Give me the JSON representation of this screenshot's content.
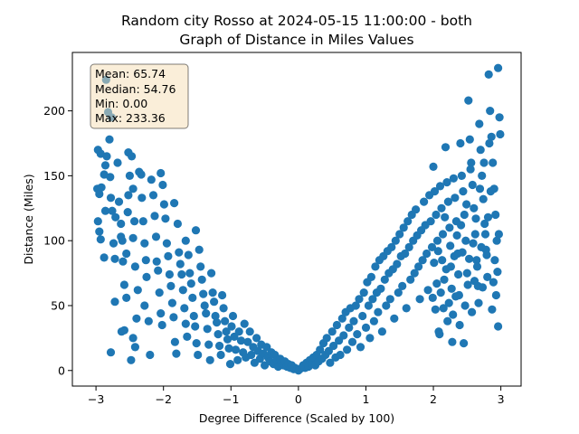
{
  "chart_data": {
    "type": "scatter",
    "title_line1": "Random city Rosso at 2024-05-15 11:00:00  - both",
    "title_line2": "Graph of Distance in Miles Values",
    "xlabel": "Degree Difference (Scaled by 100)",
    "ylabel": "Distance (Miles)",
    "xlim": [
      -3.35,
      3.3
    ],
    "ylim": [
      -12,
      245
    ],
    "xticks": [
      -3,
      -2,
      -1,
      0,
      1,
      2,
      3
    ],
    "yticks": [
      0,
      50,
      100,
      150,
      200
    ],
    "xtick_labels": [
      "−3",
      "−2",
      "−1",
      "0",
      "1",
      "2",
      "3"
    ],
    "ytick_labels": [
      "0",
      "50",
      "100",
      "150",
      "200"
    ],
    "stats": {
      "mean": "Mean: 65.74",
      "median": "Median: 54.76",
      "min": "Min: 0.00",
      "max": "Max: 233.36"
    },
    "marker_color": "#1f77b4",
    "stats_box_fill": "#f5deb3",
    "points": [
      [
        -2.97,
        170
      ],
      [
        -2.93,
        167
      ],
      [
        -2.98,
        140
      ],
      [
        -2.95,
        136
      ],
      [
        -2.92,
        141
      ],
      [
        -2.97,
        115
      ],
      [
        -2.95,
        107
      ],
      [
        -2.93,
        101
      ],
      [
        -2.88,
        87
      ],
      [
        -2.86,
        123
      ],
      [
        -2.88,
        151
      ],
      [
        -2.86,
        158
      ],
      [
        -2.84,
        165
      ],
      [
        -2.85,
        224
      ],
      [
        -2.82,
        199
      ],
      [
        -2.77,
        195
      ],
      [
        -2.8,
        178
      ],
      [
        -2.79,
        149
      ],
      [
        -2.78,
        133
      ],
      [
        -2.76,
        123
      ],
      [
        -2.74,
        98
      ],
      [
        -2.72,
        86
      ],
      [
        -2.78,
        14
      ],
      [
        -2.72,
        53
      ],
      [
        -2.71,
        118
      ],
      [
        -2.68,
        160
      ],
      [
        -2.66,
        130
      ],
      [
        -2.63,
        113
      ],
      [
        -2.63,
        103
      ],
      [
        -2.61,
        100
      ],
      [
        -2.6,
        84
      ],
      [
        -2.58,
        66
      ],
      [
        -2.62,
        30
      ],
      [
        -2.58,
        31
      ],
      [
        -2.55,
        56
      ],
      [
        -2.55,
        90
      ],
      [
        -2.53,
        122
      ],
      [
        -2.52,
        135
      ],
      [
        -2.5,
        150
      ],
      [
        -2.52,
        168
      ],
      [
        -2.47,
        165
      ],
      [
        -2.45,
        140
      ],
      [
        -2.43,
        115
      ],
      [
        -2.45,
        102
      ],
      [
        -2.42,
        80
      ],
      [
        -2.38,
        62
      ],
      [
        -2.45,
        25
      ],
      [
        -2.42,
        18
      ],
      [
        -2.48,
        8
      ],
      [
        -2.4,
        40
      ],
      [
        -2.36,
        153
      ],
      [
        -2.33,
        151
      ],
      [
        -2.32,
        133
      ],
      [
        -2.3,
        115
      ],
      [
        -2.28,
        98
      ],
      [
        -2.26,
        85
      ],
      [
        -2.25,
        72
      ],
      [
        -2.22,
        38
      ],
      [
        -2.2,
        12
      ],
      [
        -2.28,
        50
      ],
      [
        -2.18,
        147
      ],
      [
        -2.15,
        135
      ],
      [
        -2.13,
        119
      ],
      [
        -2.11,
        103
      ],
      [
        -2.1,
        84
      ],
      [
        -2.08,
        77
      ],
      [
        -2.06,
        60
      ],
      [
        -2.04,
        44
      ],
      [
        -2.02,
        35
      ],
      [
        -2.04,
        152
      ],
      [
        -2.01,
        143
      ],
      [
        -1.99,
        128
      ],
      [
        -1.97,
        117
      ],
      [
        -1.95,
        98
      ],
      [
        -1.93,
        88
      ],
      [
        -1.91,
        74
      ],
      [
        -1.89,
        65
      ],
      [
        -1.87,
        52
      ],
      [
        -1.85,
        41
      ],
      [
        -1.83,
        22
      ],
      [
        -1.81,
        13
      ],
      [
        -1.84,
        129
      ],
      [
        -1.79,
        113
      ],
      [
        -1.77,
        91
      ],
      [
        -1.75,
        82
      ],
      [
        -1.73,
        74
      ],
      [
        -1.71,
        62
      ],
      [
        -1.69,
        48
      ],
      [
        -1.67,
        36
      ],
      [
        -1.65,
        26
      ],
      [
        -1.67,
        100
      ],
      [
        -1.63,
        89
      ],
      [
        -1.61,
        75
      ],
      [
        -1.59,
        67
      ],
      [
        -1.57,
        56
      ],
      [
        -1.55,
        42
      ],
      [
        -1.53,
        34
      ],
      [
        -1.51,
        21
      ],
      [
        -1.49,
        12
      ],
      [
        -1.52,
        108
      ],
      [
        -1.47,
        93
      ],
      [
        -1.45,
        80
      ],
      [
        -1.43,
        70
      ],
      [
        -1.41,
        59
      ],
      [
        -1.39,
        50
      ],
      [
        -1.37,
        44
      ],
      [
        -1.35,
        32
      ],
      [
        -1.33,
        20
      ],
      [
        -1.31,
        8
      ],
      [
        -1.29,
        75
      ],
      [
        -1.27,
        60
      ],
      [
        -1.25,
        53
      ],
      [
        -1.23,
        42
      ],
      [
        -1.21,
        37
      ],
      [
        -1.19,
        28
      ],
      [
        -1.17,
        19
      ],
      [
        -1.15,
        12
      ],
      [
        -1.13,
        58
      ],
      [
        -1.11,
        48
      ],
      [
        -1.09,
        38
      ],
      [
        -1.07,
        30
      ],
      [
        -1.05,
        24
      ],
      [
        -1.03,
        17
      ],
      [
        -1.01,
        5
      ],
      [
        -0.99,
        34
      ],
      [
        -0.97,
        42
      ],
      [
        -0.95,
        26
      ],
      [
        -0.93,
        16
      ],
      [
        -0.9,
        8
      ],
      [
        -0.88,
        30
      ],
      [
        -0.85,
        23
      ],
      [
        -0.82,
        14
      ],
      [
        -0.8,
        36
      ],
      [
        -0.78,
        10
      ],
      [
        -0.75,
        22
      ],
      [
        -0.72,
        30
      ],
      [
        -0.7,
        12
      ],
      [
        -0.67,
        18
      ],
      [
        -0.65,
        6
      ],
      [
        -0.62,
        25
      ],
      [
        -0.6,
        15
      ],
      [
        -0.57,
        9
      ],
      [
        -0.55,
        20
      ],
      [
        -0.52,
        13
      ],
      [
        -0.5,
        4
      ],
      [
        -0.47,
        18
      ],
      [
        -0.45,
        10
      ],
      [
        -0.42,
        7
      ],
      [
        -0.4,
        14
      ],
      [
        -0.37,
        5
      ],
      [
        -0.35,
        12
      ],
      [
        -0.32,
        8
      ],
      [
        -0.3,
        3
      ],
      [
        -0.27,
        9
      ],
      [
        -0.25,
        6
      ],
      [
        -0.22,
        4
      ],
      [
        -0.2,
        7
      ],
      [
        -0.17,
        3
      ],
      [
        -0.15,
        5
      ],
      [
        -0.12,
        2
      ],
      [
        -0.1,
        4
      ],
      [
        -0.07,
        1
      ],
      [
        -0.05,
        2
      ],
      [
        -0.02,
        1
      ],
      [
        0,
        0
      ],
      [
        0.02,
        1
      ],
      [
        0.05,
        2
      ],
      [
        0.07,
        4
      ],
      [
        0.1,
        2
      ],
      [
        0.12,
        6
      ],
      [
        0.15,
        3
      ],
      [
        0.17,
        8
      ],
      [
        0.2,
        5
      ],
      [
        0.22,
        10
      ],
      [
        0.25,
        4
      ],
      [
        0.27,
        12
      ],
      [
        0.3,
        7
      ],
      [
        0.32,
        16
      ],
      [
        0.35,
        9
      ],
      [
        0.37,
        21
      ],
      [
        0.4,
        12
      ],
      [
        0.42,
        25
      ],
      [
        0.45,
        15
      ],
      [
        0.47,
        6
      ],
      [
        0.5,
        30
      ],
      [
        0.52,
        19
      ],
      [
        0.55,
        10
      ],
      [
        0.57,
        35
      ],
      [
        0.6,
        23
      ],
      [
        0.62,
        12
      ],
      [
        0.65,
        40
      ],
      [
        0.67,
        27
      ],
      [
        0.7,
        45
      ],
      [
        0.72,
        16
      ],
      [
        0.75,
        33
      ],
      [
        0.77,
        48
      ],
      [
        0.8,
        22
      ],
      [
        0.82,
        38
      ],
      [
        0.85,
        50
      ],
      [
        0.87,
        28
      ],
      [
        0.9,
        55
      ],
      [
        0.92,
        18
      ],
      [
        0.95,
        42
      ],
      [
        0.97,
        60
      ],
      [
        1,
        33
      ],
      [
        1.02,
        68
      ],
      [
        1.04,
        50
      ],
      [
        1.06,
        25
      ],
      [
        1.08,
        72
      ],
      [
        1.1,
        55
      ],
      [
        1.12,
        38
      ],
      [
        1.14,
        80
      ],
      [
        1.16,
        60
      ],
      [
        1.18,
        45
      ],
      [
        1.2,
        85
      ],
      [
        1.22,
        63
      ],
      [
        1.24,
        30
      ],
      [
        1.26,
        88
      ],
      [
        1.28,
        70
      ],
      [
        1.3,
        50
      ],
      [
        1.32,
        92
      ],
      [
        1.34,
        75
      ],
      [
        1.36,
        55
      ],
      [
        1.38,
        95
      ],
      [
        1.4,
        78
      ],
      [
        1.42,
        40
      ],
      [
        1.44,
        100
      ],
      [
        1.46,
        82
      ],
      [
        1.48,
        60
      ],
      [
        1.5,
        105
      ],
      [
        1.52,
        88
      ],
      [
        1.54,
        65
      ],
      [
        1.56,
        110
      ],
      [
        1.58,
        90
      ],
      [
        1.6,
        48
      ],
      [
        1.62,
        115
      ],
      [
        1.64,
        95
      ],
      [
        1.66,
        70
      ],
      [
        1.68,
        120
      ],
      [
        1.7,
        100
      ],
      [
        1.72,
        75
      ],
      [
        1.74,
        124
      ],
      [
        1.76,
        104
      ],
      [
        1.78,
        80
      ],
      [
        1.8,
        55
      ],
      [
        1.82,
        108
      ],
      [
        1.84,
        85
      ],
      [
        1.86,
        130
      ],
      [
        1.88,
        112
      ],
      [
        1.9,
        90
      ],
      [
        1.92,
        62
      ],
      [
        1.94,
        135
      ],
      [
        1.96,
        115
      ],
      [
        1.98,
        95
      ],
      [
        2,
        157
      ],
      [
        2.02,
        138
      ],
      [
        2.04,
        120
      ],
      [
        2.06,
        100
      ],
      [
        2.08,
        30
      ],
      [
        2.1,
        142
      ],
      [
        2.12,
        125
      ],
      [
        2.14,
        105
      ],
      [
        2.16,
        70
      ],
      [
        2.18,
        172
      ],
      [
        2.2,
        145
      ],
      [
        2.22,
        130
      ],
      [
        2.24,
        110
      ],
      [
        2.26,
        80
      ],
      [
        2.28,
        22
      ],
      [
        2.3,
        148
      ],
      [
        2.32,
        133
      ],
      [
        2.34,
        115
      ],
      [
        2.36,
        90
      ],
      [
        2.38,
        58
      ],
      [
        2.4,
        175
      ],
      [
        2.42,
        150
      ],
      [
        2.44,
        138
      ],
      [
        2.46,
        120
      ],
      [
        2.48,
        100
      ],
      [
        2.5,
        75
      ],
      [
        2.52,
        208
      ],
      [
        2.54,
        178
      ],
      [
        2.56,
        160
      ],
      [
        2.58,
        143
      ],
      [
        2.6,
        125
      ],
      [
        2.62,
        105
      ],
      [
        2.64,
        85
      ],
      [
        2.66,
        65
      ],
      [
        2.68,
        190
      ],
      [
        2.7,
        170
      ],
      [
        2.72,
        150
      ],
      [
        2.74,
        132
      ],
      [
        2.76,
        113
      ],
      [
        2.78,
        93
      ],
      [
        2.8,
        72
      ],
      [
        2.82,
        228
      ],
      [
        2.84,
        200
      ],
      [
        2.86,
        180
      ],
      [
        2.88,
        160
      ],
      [
        2.9,
        140
      ],
      [
        2.92,
        120
      ],
      [
        2.94,
        100
      ],
      [
        2.96,
        233
      ],
      [
        2.98,
        195
      ],
      [
        2.99,
        182
      ],
      [
        2.97,
        105
      ],
      [
        2.95,
        76
      ],
      [
        2.96,
        34
      ],
      [
        2.93,
        58
      ],
      [
        2.91,
        85
      ],
      [
        2.89,
        68
      ],
      [
        2.87,
        47
      ],
      [
        2.85,
        138
      ],
      [
        2.83,
        175
      ],
      [
        2.81,
        118
      ],
      [
        2.79,
        89
      ],
      [
        2.77,
        105
      ],
      [
        2.75,
        160
      ],
      [
        2.73,
        64
      ],
      [
        2.71,
        95
      ],
      [
        2.69,
        140
      ],
      [
        2.67,
        52
      ],
      [
        2.65,
        80
      ],
      [
        2.63,
        117
      ],
      [
        2.61,
        69
      ],
      [
        2.59,
        98
      ],
      [
        2.57,
        45
      ],
      [
        2.55,
        155
      ],
      [
        2.53,
        86
      ],
      [
        2.51,
        66
      ],
      [
        2.49,
        128
      ],
      [
        2.47,
        50
      ],
      [
        2.45,
        21
      ],
      [
        2.43,
        91
      ],
      [
        2.41,
        112
      ],
      [
        2.39,
        35
      ],
      [
        2.37,
        74
      ],
      [
        2.35,
        104
      ],
      [
        2.33,
        57
      ],
      [
        2.31,
        88
      ],
      [
        2.29,
        43
      ],
      [
        2.27,
        63
      ],
      [
        2.25,
        96
      ],
      [
        2.23,
        52
      ],
      [
        2.21,
        38
      ],
      [
        2.19,
        78
      ],
      [
        2.17,
        118
      ],
      [
        2.15,
        48
      ],
      [
        2.13,
        85
      ],
      [
        2.11,
        60
      ],
      [
        2.09,
        28
      ],
      [
        2.07,
        92
      ],
      [
        2.05,
        67
      ],
      [
        2.03,
        47
      ],
      [
        2.01,
        83
      ],
      [
        1.99,
        56
      ]
    ]
  }
}
